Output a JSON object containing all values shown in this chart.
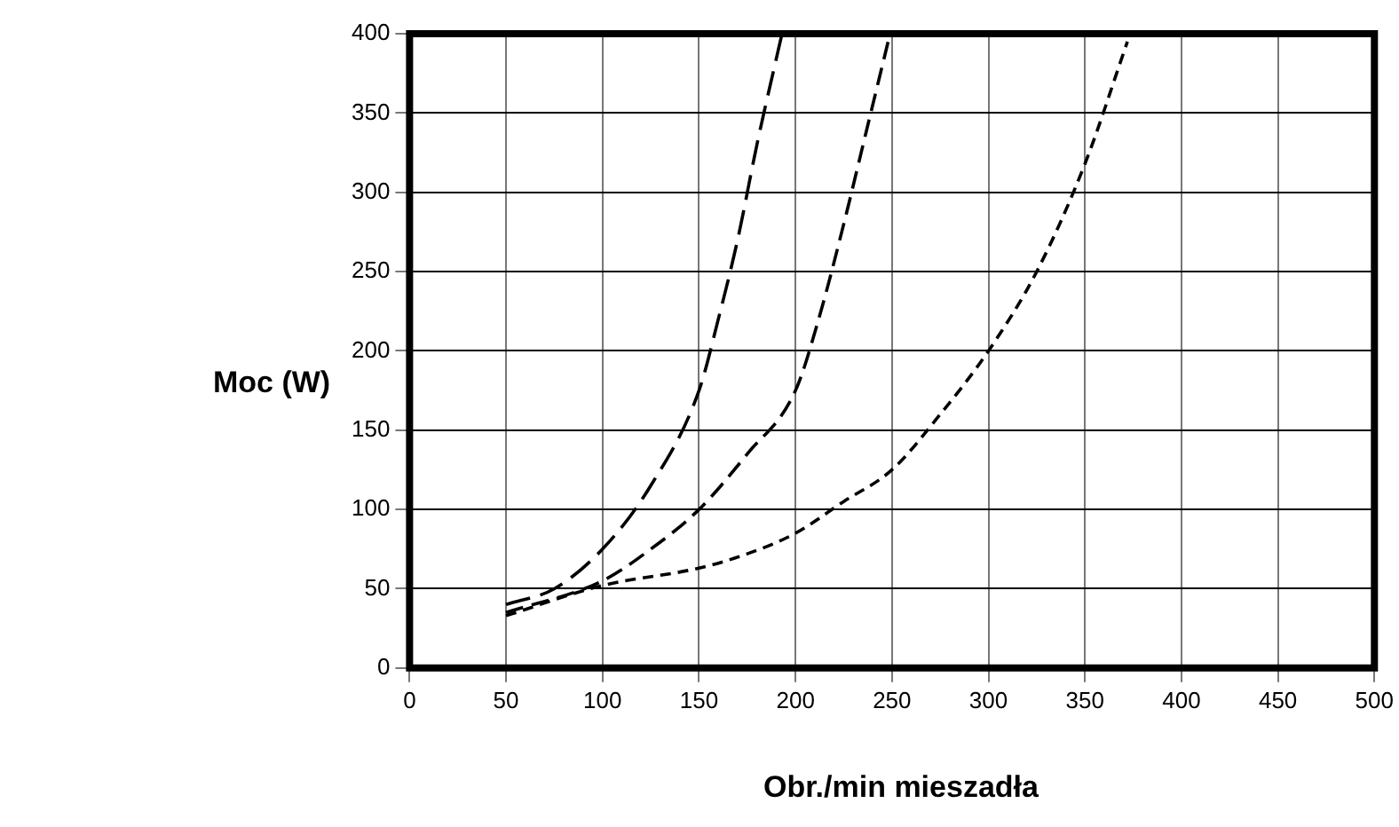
{
  "chart_data": {
    "type": "line",
    "xlabel": "Obr./min mieszadła",
    "ylabel": "Moc (W)",
    "xlim": [
      0,
      500
    ],
    "xticks": [
      0,
      50,
      100,
      150,
      200,
      250,
      300,
      350,
      400,
      450,
      500
    ],
    "ylim": [
      0,
      400
    ],
    "yticks": [
      0,
      50,
      100,
      150,
      200,
      250,
      300,
      350,
      400
    ],
    "grid": true,
    "legend": false,
    "marker": "none",
    "line_style": "dashed",
    "series": [
      {
        "color": "#000000",
        "x": [
          50,
          75,
          100,
          125,
          150,
          160,
          170,
          180,
          193
        ],
        "values": [
          40,
          50,
          75,
          115,
          175,
          220,
          270,
          330,
          400
        ]
      },
      {
        "color": "#000000",
        "x": [
          50,
          100,
          125,
          150,
          175,
          200,
          212,
          225,
          237,
          249
        ],
        "values": [
          35,
          55,
          75,
          100,
          135,
          175,
          220,
          280,
          340,
          400
        ]
      },
      {
        "color": "#000000",
        "x": [
          50,
          100,
          150,
          175,
          200,
          225,
          250,
          275,
          300,
          325,
          350,
          372
        ],
        "values": [
          33,
          52,
          63,
          72,
          85,
          105,
          125,
          160,
          200,
          250,
          318,
          395
        ]
      }
    ]
  }
}
